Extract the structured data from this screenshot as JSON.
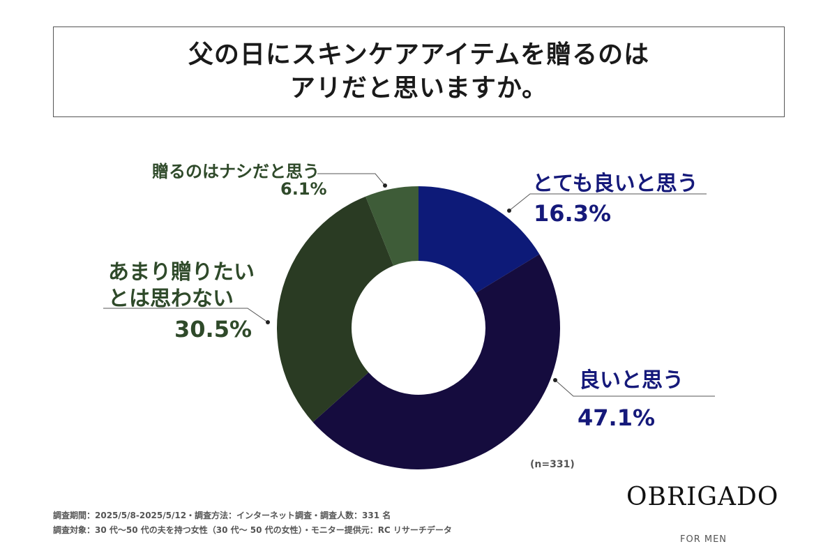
{
  "title": {
    "line1": "父の日にスキンケアアイテムを贈るのは",
    "line2": "アリだと思いますか。"
  },
  "chart_data": {
    "type": "pie",
    "variant": "donut",
    "slices": [
      {
        "label": "とても良いと思う",
        "value": 16.3,
        "display": "16.3%",
        "color": "#0d1a78"
      },
      {
        "label": "良いと思う",
        "value": 47.1,
        "display": "47.1%",
        "color": "#150c3e"
      },
      {
        "label": "あまり贈りたいとは思わない",
        "label_lines": [
          "あまり贈りたい",
          "とは思わない"
        ],
        "value": 30.5,
        "display": "30.5%",
        "color": "#2a3b23"
      },
      {
        "label": "贈るのはナシだと思う",
        "value": 6.1,
        "display": "6.1%",
        "color": "#3e5c38"
      }
    ],
    "sample_note": "(n=331)"
  },
  "footer": {
    "line1": "調査期間：2025/5/8-2025/5/12・調査方法：インターネット調査・調査人数：331 名",
    "line2": "調査対象：30 代〜50 代の夫を持つ女性（30 代〜 50 代の女性）・モニター提供元：RC リサーチデータ"
  },
  "brand": {
    "logo": "OBRIGADO",
    "sub": "FOR MEN"
  }
}
